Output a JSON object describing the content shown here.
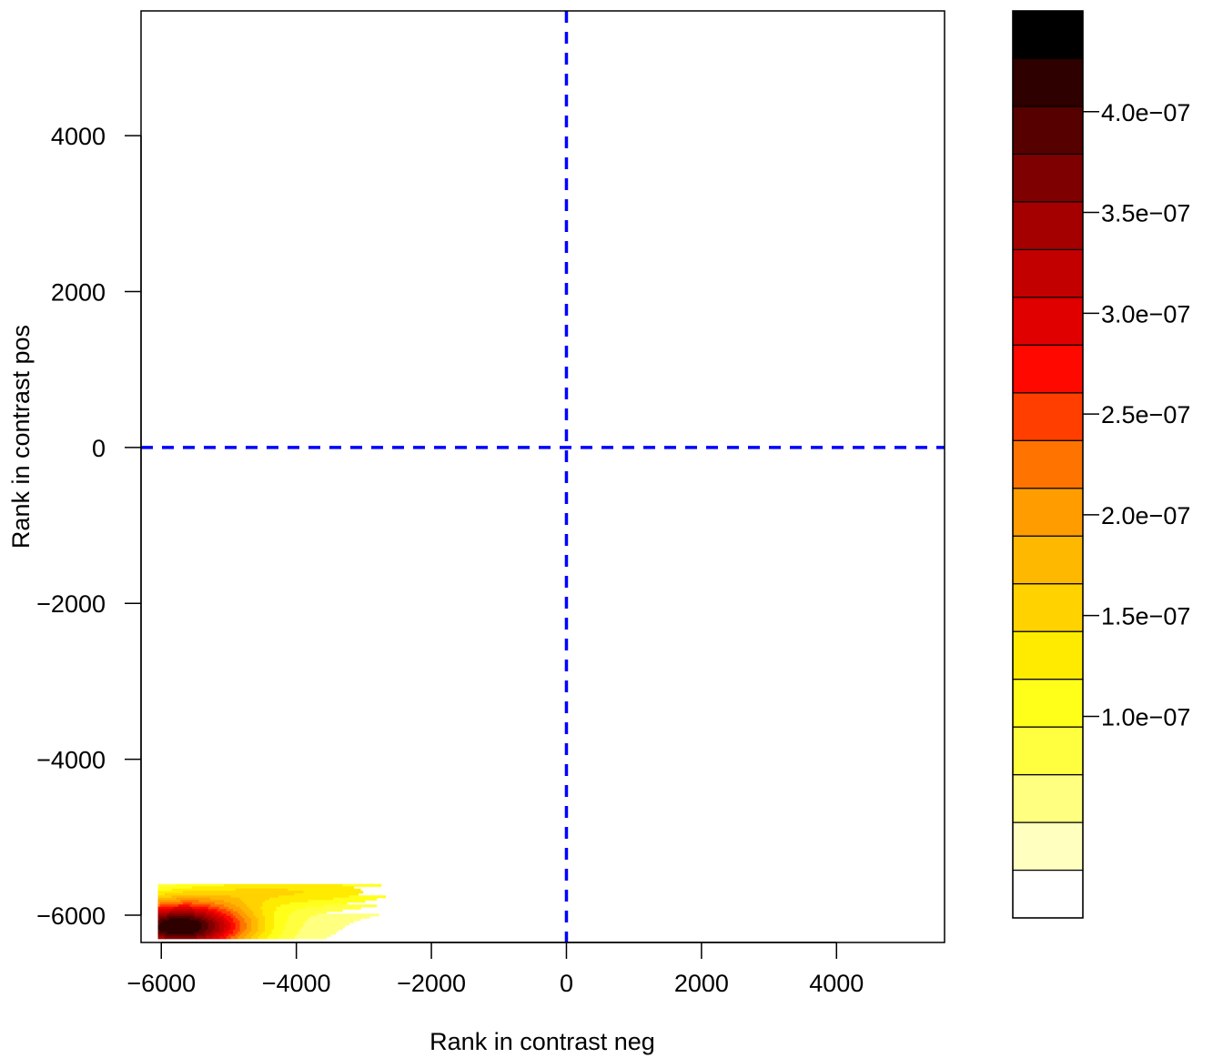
{
  "chart_data": {
    "type": "contour",
    "title": "",
    "xlabel": "Rank in contrast neg",
    "ylabel": "Rank in contrast pos",
    "xlim": [
      -6300,
      5600
    ],
    "ylim": [
      -6350,
      5600
    ],
    "xticks": [
      -6000,
      -4000,
      -2000,
      0,
      2000,
      4000
    ],
    "xtick_labels": [
      "−6000",
      "−4000",
      "−2000",
      "0",
      "2000",
      "4000"
    ],
    "yticks": [
      -6000,
      -4000,
      -2000,
      0,
      2000,
      4000
    ],
    "ytick_labels": [
      "−6000",
      "−4000",
      "−2000",
      "0",
      "2000",
      "4000"
    ],
    "reference_lines": [
      {
        "orientation": "vertical",
        "value": 0,
        "color": "#0000ff",
        "style": "dashed"
      },
      {
        "orientation": "horizontal",
        "value": 0,
        "color": "#0000ff",
        "style": "dashed"
      }
    ],
    "density_region": {
      "x": [
        -6050,
        -2650
      ],
      "y": [
        -6300,
        -5600
      ]
    },
    "density_peak": {
      "x": -5750,
      "y": -6150,
      "value": 4.2e-07
    },
    "legend": {
      "placement": "right",
      "levels": [
        0.0,
        7.5e-08,
        1e-07,
        1.25e-07,
        1.5e-07,
        1.75e-07,
        2e-07,
        2.25e-07,
        2.5e-07,
        2.75e-07,
        3e-07,
        3.25e-07,
        3.5e-07,
        3.75e-07,
        4e-07,
        4.25e-07,
        4.5e-07
      ],
      "colors": [
        "#ffffff",
        "#ffffbf",
        "#ffff80",
        "#ffff40",
        "#ffff1a",
        "#ffeb00",
        "#ffd200",
        "#ffb800",
        "#ff9d00",
        "#ff7400",
        "#ff3e00",
        "#ff0800",
        "#e00000",
        "#c30000",
        "#a40000",
        "#7f0000",
        "#560000",
        "#2e0000",
        "#000000"
      ],
      "ticks": [
        1e-07,
        1.5e-07,
        2e-07,
        2.5e-07,
        3e-07,
        3.5e-07,
        4e-07
      ],
      "tick_labels": [
        "1.0e−07",
        "1.5e−07",
        "2.0e−07",
        "2.5e−07",
        "3.0e−07",
        "3.5e−07",
        "4.0e−07"
      ]
    }
  }
}
